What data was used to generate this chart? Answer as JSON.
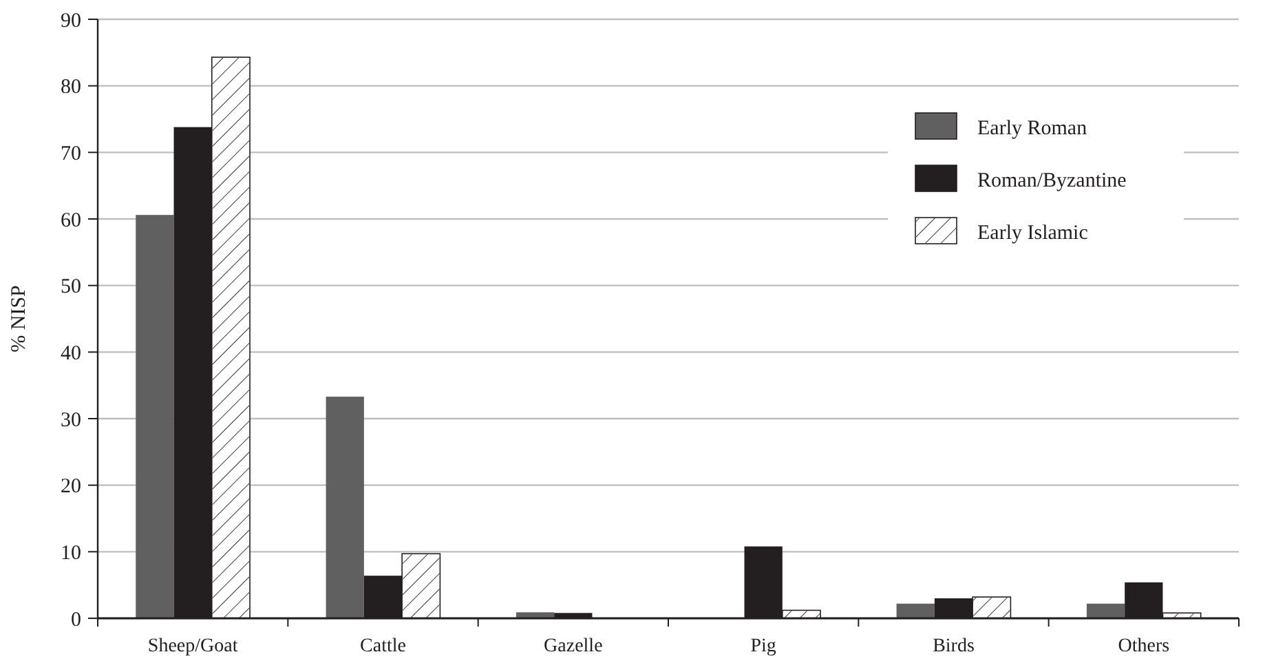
{
  "chart_data": {
    "type": "bar",
    "ylabel": "% NISP",
    "categories": [
      "Sheep/Goat",
      "Cattle",
      "Gazelle",
      "Pig",
      "Birds",
      "Others"
    ],
    "series": [
      {
        "name": "Early Roman",
        "color": "#606060",
        "values": [
          60.6,
          33.3,
          0.9,
          0,
          2.2,
          2.2
        ]
      },
      {
        "name": "Roman/Byzantine",
        "color": "#231f20",
        "values": [
          73.8,
          6.4,
          0.8,
          10.8,
          3.0,
          5.4
        ]
      },
      {
        "name": "Early Islamic",
        "color": "#ffffff",
        "values": [
          84.3,
          9.7,
          0,
          1.2,
          3.2,
          0.8
        ]
      }
    ],
    "ylim": [
      0,
      90
    ],
    "yticks": [
      0,
      10,
      20,
      30,
      40,
      50,
      60,
      70,
      80,
      90
    ],
    "grid": "y",
    "legend": "top right"
  }
}
